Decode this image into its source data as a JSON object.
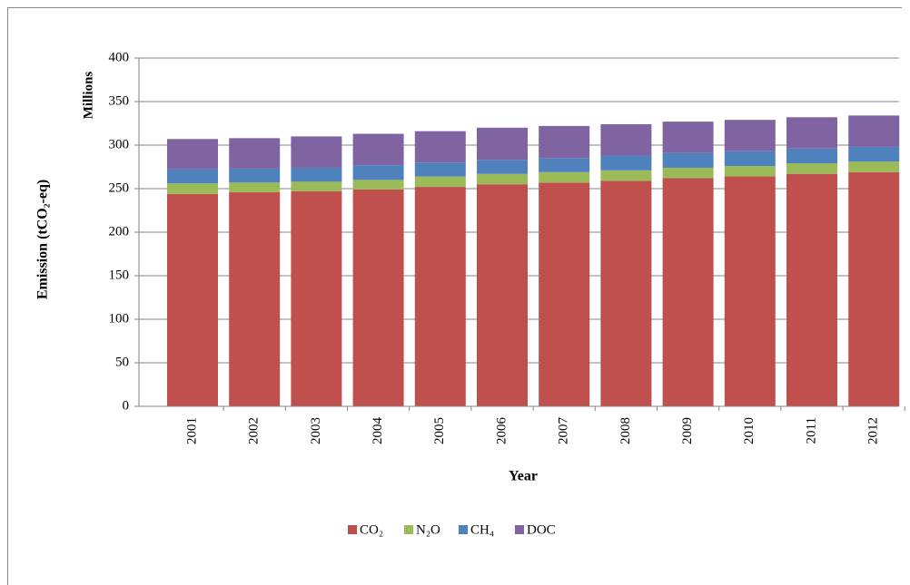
{
  "chart_data": {
    "type": "stacked_bar",
    "y_axis_label": "Emission (tCO₂-eq)",
    "y_axis_unit": "Millions",
    "x_axis_label": "Year",
    "categories": [
      "2001",
      "2002",
      "2003",
      "2004",
      "2005",
      "2006",
      "2007",
      "2008",
      "2009",
      "2010",
      "2011",
      "2012"
    ],
    "series": [
      {
        "name": "CO₂",
        "color": "#c0504d",
        "values": [
          244,
          246,
          247,
          249,
          252,
          255,
          257,
          259,
          262,
          264,
          267,
          269
        ]
      },
      {
        "name": "N₂O",
        "color": "#9bbb59",
        "values": [
          12,
          11,
          11,
          11,
          12,
          12,
          12,
          12,
          12,
          12,
          12,
          12
        ]
      },
      {
        "name": "CH₄",
        "color": "#4f81bd",
        "values": [
          16,
          16,
          16,
          17,
          16,
          16,
          16,
          17,
          17,
          17,
          17,
          17
        ]
      },
      {
        "name": "DOC",
        "color": "#8064a2",
        "values": [
          35,
          35,
          36,
          36,
          36,
          37,
          37,
          36,
          36,
          36,
          36,
          36
        ]
      }
    ],
    "ylim": [
      0,
      400
    ],
    "yticks": [
      0,
      50,
      100,
      150,
      200,
      250,
      300,
      350,
      400
    ],
    "grid": true,
    "legend": "bottom"
  }
}
